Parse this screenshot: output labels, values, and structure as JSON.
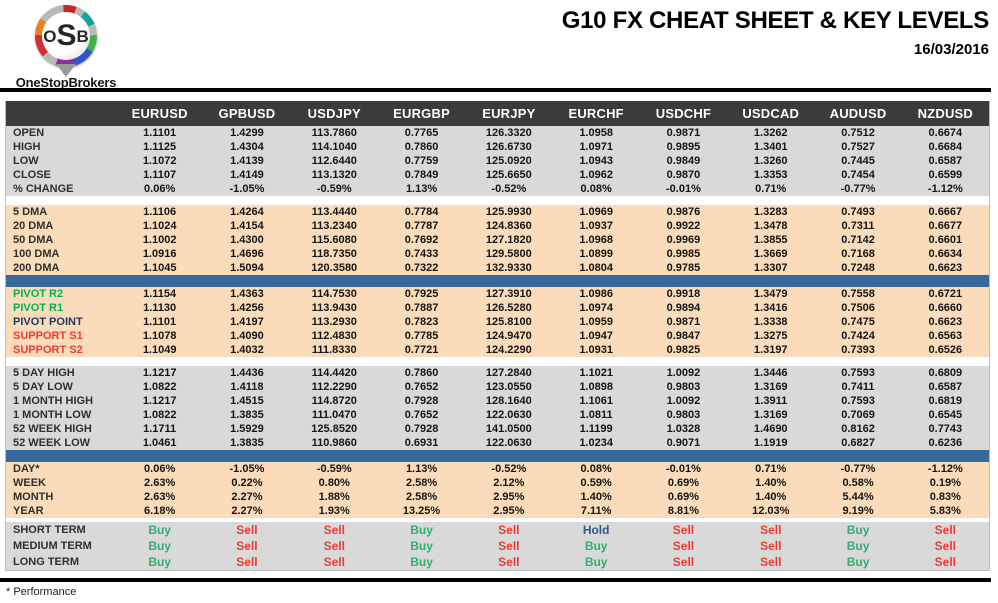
{
  "logo": {
    "monogram_o": "O",
    "monogram_s": "S",
    "monogram_b": "B",
    "brand": "OneStopBrokers"
  },
  "header": {
    "title": "G10 FX CHEAT SHEET & KEY LEVELS",
    "date": "16/03/2016"
  },
  "footer": {
    "note": "* Performance"
  },
  "colors": {
    "header_dark": "#3b3b3b",
    "section_gray": "#d9d9d9",
    "section_peach": "#fbdcba",
    "bar_blue": "#39689b",
    "buy_green": "#2fae71",
    "sell_red": "#ee3a33",
    "hold_blue": "#2e5a8f",
    "pivot_green": "#00b050",
    "pivot_navy": "#1f3864",
    "support_red": "#ee3a33"
  },
  "table": {
    "columns": [
      "EURUSD",
      "GPBUSD",
      "USDJPY",
      "EURGBP",
      "EURJPY",
      "EURCHF",
      "USDCHF",
      "USDCAD",
      "AUDUSD",
      "NZDUSD"
    ],
    "sections": [
      {
        "id": "quotes",
        "bg": "gray",
        "after": "gap",
        "rows": [
          {
            "label": "OPEN",
            "values": [
              "1.1101",
              "1.4299",
              "113.7860",
              "0.7765",
              "126.3320",
              "1.0958",
              "0.9871",
              "1.3262",
              "0.7512",
              "0.6674"
            ]
          },
          {
            "label": "HIGH",
            "values": [
              "1.1125",
              "1.4304",
              "114.1040",
              "0.7860",
              "126.6730",
              "1.0971",
              "0.9895",
              "1.3401",
              "0.7527",
              "0.6684"
            ]
          },
          {
            "label": "LOW",
            "values": [
              "1.1072",
              "1.4139",
              "112.6440",
              "0.7759",
              "125.0920",
              "1.0943",
              "0.9849",
              "1.3260",
              "0.7445",
              "0.6587"
            ]
          },
          {
            "label": "CLOSE",
            "values": [
              "1.1107",
              "1.4149",
              "113.1320",
              "0.7849",
              "125.6650",
              "1.0962",
              "0.9870",
              "1.3353",
              "0.7454",
              "0.6599"
            ]
          },
          {
            "label": "% CHANGE",
            "values": [
              "0.06%",
              "-1.05%",
              "-0.59%",
              "1.13%",
              "-0.52%",
              "0.08%",
              "-0.01%",
              "0.71%",
              "-0.77%",
              "-1.12%"
            ]
          }
        ]
      },
      {
        "id": "dma",
        "bg": "peach",
        "after": "bar",
        "rows": [
          {
            "label": "5 DMA",
            "values": [
              "1.1106",
              "1.4264",
              "113.4440",
              "0.7784",
              "125.9930",
              "1.0969",
              "0.9876",
              "1.3283",
              "0.7493",
              "0.6667"
            ]
          },
          {
            "label": "20 DMA",
            "values": [
              "1.1024",
              "1.4154",
              "113.2340",
              "0.7787",
              "124.8360",
              "1.0937",
              "0.9922",
              "1.3478",
              "0.7311",
              "0.6677"
            ]
          },
          {
            "label": "50 DMA",
            "values": [
              "1.1002",
              "1.4300",
              "115.6080",
              "0.7692",
              "127.1820",
              "1.0968",
              "0.9969",
              "1.3855",
              "0.7142",
              "0.6601"
            ]
          },
          {
            "label": "100 DMA",
            "values": [
              "1.0916",
              "1.4696",
              "118.7350",
              "0.7433",
              "129.5800",
              "1.0899",
              "0.9985",
              "1.3669",
              "0.7168",
              "0.6634"
            ]
          },
          {
            "label": "200 DMA",
            "values": [
              "1.1045",
              "1.5094",
              "120.3580",
              "0.7322",
              "132.9330",
              "1.0804",
              "0.9785",
              "1.3307",
              "0.7248",
              "0.6623"
            ]
          }
        ]
      },
      {
        "id": "pivots",
        "bg": "peach",
        "after": "gap",
        "rows": [
          {
            "label": "PIVOT R2",
            "label_style": "green",
            "values": [
              "1.1154",
              "1.4363",
              "114.7530",
              "0.7925",
              "127.3910",
              "1.0986",
              "0.9918",
              "1.3479",
              "0.7558",
              "0.6721"
            ]
          },
          {
            "label": "PIVOT R1",
            "label_style": "green",
            "values": [
              "1.1130",
              "1.4256",
              "113.9430",
              "0.7887",
              "126.5280",
              "1.0974",
              "0.9894",
              "1.3416",
              "0.7506",
              "0.6660"
            ]
          },
          {
            "label": "PIVOT POINT",
            "label_style": "navy",
            "values": [
              "1.1101",
              "1.4197",
              "113.2930",
              "0.7823",
              "125.8100",
              "1.0959",
              "0.9871",
              "1.3338",
              "0.7475",
              "0.6623"
            ]
          },
          {
            "label": "SUPPORT S1",
            "label_style": "red",
            "values": [
              "1.1078",
              "1.4090",
              "112.4830",
              "0.7785",
              "124.9470",
              "1.0947",
              "0.9847",
              "1.3275",
              "0.7424",
              "0.6563"
            ]
          },
          {
            "label": "SUPPORT S2",
            "label_style": "red",
            "values": [
              "1.1049",
              "1.4032",
              "111.8330",
              "0.7721",
              "124.2290",
              "1.0931",
              "0.9825",
              "1.3197",
              "0.7393",
              "0.6526"
            ]
          }
        ]
      },
      {
        "id": "ranges",
        "bg": "gray",
        "after": "bar",
        "rows": [
          {
            "label": "5 DAY HIGH",
            "values": [
              "1.1217",
              "1.4436",
              "114.4420",
              "0.7860",
              "127.2840",
              "1.1021",
              "1.0092",
              "1.3446",
              "0.7593",
              "0.6809"
            ]
          },
          {
            "label": "5 DAY LOW",
            "values": [
              "1.0822",
              "1.4118",
              "112.2290",
              "0.7652",
              "123.0550",
              "1.0898",
              "0.9803",
              "1.3169",
              "0.7411",
              "0.6587"
            ]
          },
          {
            "label": "1 MONTH HIGH",
            "values": [
              "1.1217",
              "1.4515",
              "114.8720",
              "0.7928",
              "128.1640",
              "1.1061",
              "1.0092",
              "1.3911",
              "0.7593",
              "0.6819"
            ]
          },
          {
            "label": "1 MONTH LOW",
            "values": [
              "1.0822",
              "1.3835",
              "111.0470",
              "0.7652",
              "122.0630",
              "1.0811",
              "0.9803",
              "1.3169",
              "0.7069",
              "0.6545"
            ]
          },
          {
            "label": "52 WEEK HIGH",
            "values": [
              "1.1711",
              "1.5929",
              "125.8520",
              "0.7928",
              "141.0500",
              "1.1199",
              "1.0328",
              "1.4690",
              "0.8162",
              "0.7743"
            ]
          },
          {
            "label": "52 WEEK LOW",
            "values": [
              "1.0461",
              "1.3835",
              "110.9860",
              "0.6931",
              "122.0630",
              "1.0234",
              "0.9071",
              "1.1919",
              "0.6827",
              "0.6236"
            ]
          }
        ]
      },
      {
        "id": "performance",
        "bg": "peach",
        "after": "gap-small",
        "rows": [
          {
            "label": "DAY*",
            "values": [
              "0.06%",
              "-1.05%",
              "-0.59%",
              "1.13%",
              "-0.52%",
              "0.08%",
              "-0.01%",
              "0.71%",
              "-0.77%",
              "-1.12%"
            ]
          },
          {
            "label": "WEEK",
            "values": [
              "2.63%",
              "0.22%",
              "0.80%",
              "2.58%",
              "2.12%",
              "0.59%",
              "0.69%",
              "1.40%",
              "0.58%",
              "0.19%"
            ]
          },
          {
            "label": "MONTH",
            "values": [
              "2.63%",
              "2.27%",
              "1.88%",
              "2.58%",
              "2.95%",
              "1.40%",
              "0.69%",
              "1.40%",
              "5.44%",
              "0.83%"
            ]
          },
          {
            "label": "YEAR",
            "values": [
              "6.18%",
              "2.27%",
              "1.93%",
              "13.25%",
              "2.95%",
              "7.11%",
              "8.81%",
              "12.03%",
              "9.19%",
              "5.83%"
            ]
          }
        ]
      },
      {
        "id": "signals",
        "bg": "gray",
        "signal": true,
        "after": null,
        "rows": [
          {
            "label": "SHORT TERM",
            "values": [
              "Buy",
              "Sell",
              "Sell",
              "Buy",
              "Sell",
              "Hold",
              "Sell",
              "Sell",
              "Buy",
              "Sell"
            ]
          },
          {
            "label": "MEDIUM TERM",
            "values": [
              "Buy",
              "Sell",
              "Sell",
              "Buy",
              "Sell",
              "Buy",
              "Sell",
              "Sell",
              "Buy",
              "Sell"
            ]
          },
          {
            "label": "LONG TERM",
            "values": [
              "Buy",
              "Sell",
              "Sell",
              "Buy",
              "Sell",
              "Buy",
              "Sell",
              "Sell",
              "Buy",
              "Sell"
            ]
          }
        ]
      }
    ]
  }
}
